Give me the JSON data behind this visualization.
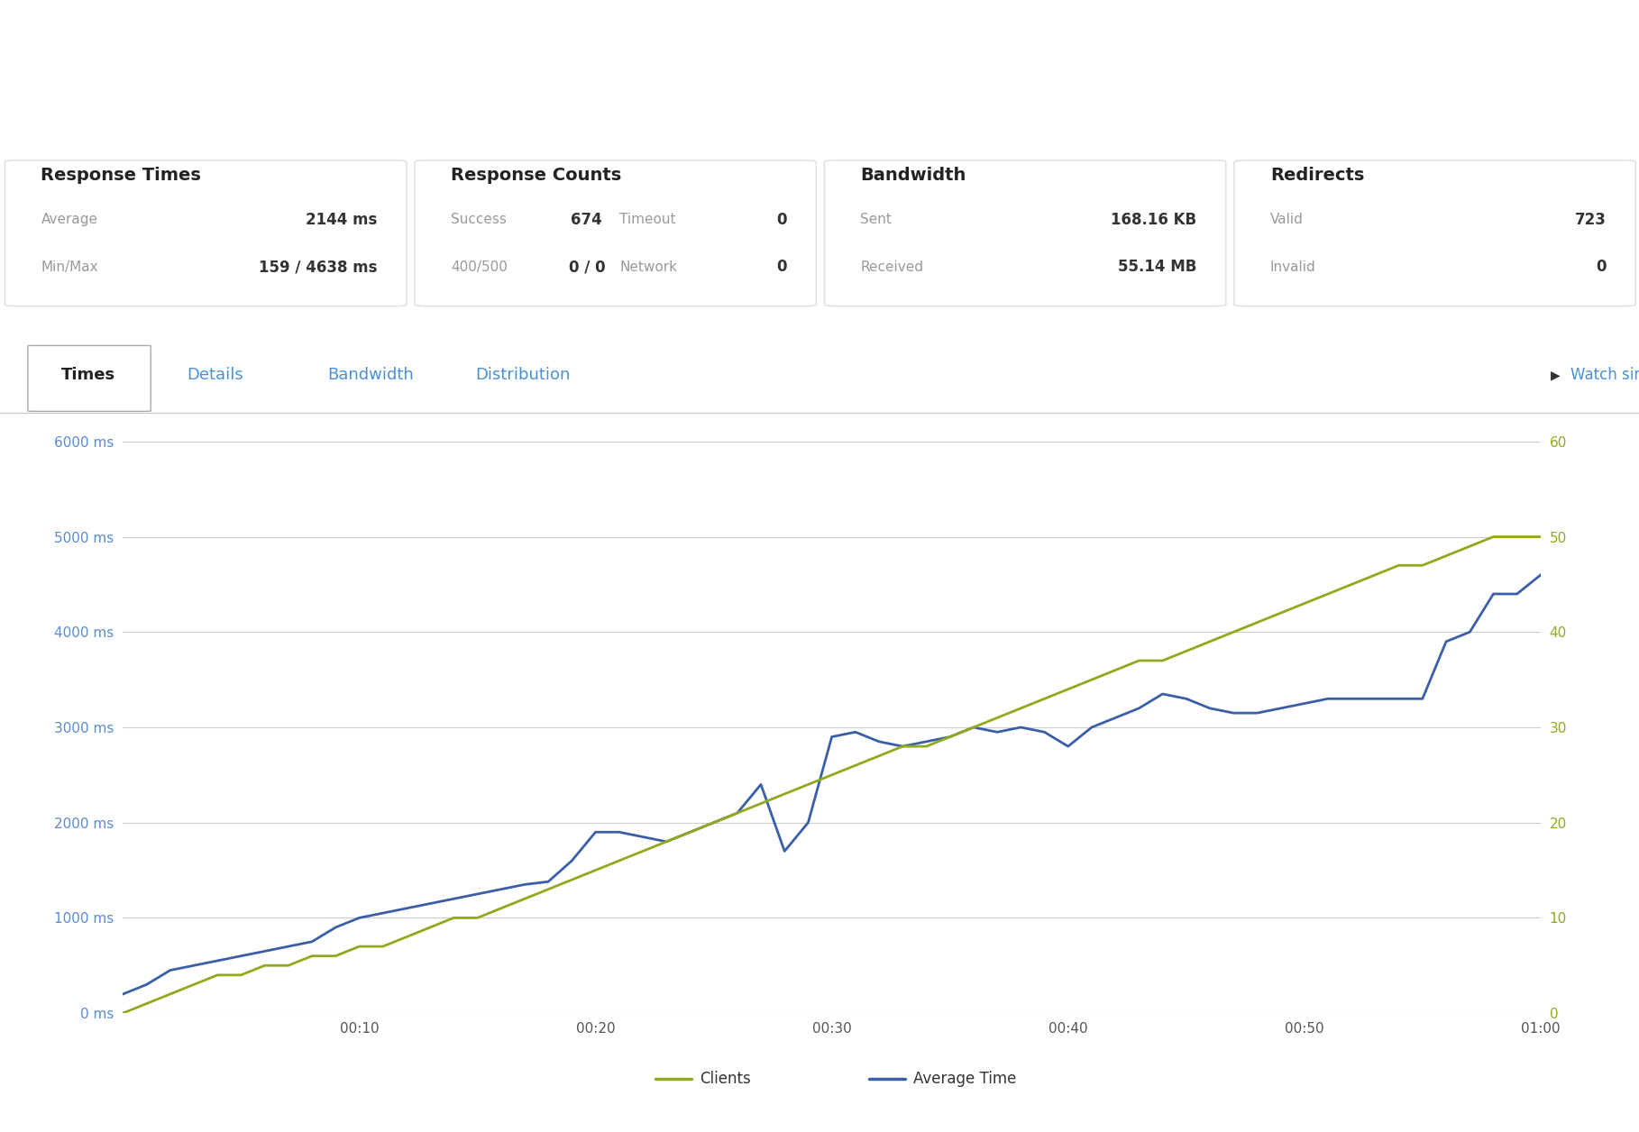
{
  "background_color": "#ffffff",
  "grid_color": "#cccccc",
  "left_tick_color": "#5b8bd0",
  "right_tick_color": "#8faa1b",
  "tab_active_color": "#222222",
  "tab_inactive_color": "#4a90d9",
  "label_color": "#999999",
  "value_color": "#333333",
  "card_border_color": "#dddddd",
  "cards": [
    {
      "title": "Response Times",
      "rows": [
        {
          "label": "Average",
          "value": "2144 ms"
        },
        {
          "label": "Min/Max",
          "value": "159 / 4638 ms"
        }
      ]
    },
    {
      "title": "Response Counts",
      "rows": [
        {
          "label": "Success",
          "value": "674",
          "label2": "Timeout",
          "value2": "0"
        },
        {
          "label": "400/500",
          "value": "0 / 0",
          "label2": "Network",
          "value2": "0"
        }
      ]
    },
    {
      "title": "Bandwidth",
      "rows": [
        {
          "label": "Sent",
          "value": "168.16 KB"
        },
        {
          "label": "Received",
          "value": "55.14 MB"
        }
      ]
    },
    {
      "title": "Redirects",
      "rows": [
        {
          "label": "Valid",
          "value": "723"
        },
        {
          "label": "Invalid",
          "value": "0"
        }
      ]
    }
  ],
  "tabs": [
    "Times",
    "Details",
    "Bandwidth",
    "Distribution"
  ],
  "active_tab": "Times",
  "watch_text": "Watch simulation",
  "chart": {
    "left_yticks": [
      0,
      1000,
      2000,
      3000,
      4000,
      5000,
      6000
    ],
    "left_yticklabels": [
      "0 ms",
      "1000 ms",
      "2000 ms",
      "3000 ms",
      "4000 ms",
      "5000 ms",
      "6000 ms"
    ],
    "right_yticks": [
      0,
      10,
      20,
      30,
      40,
      50,
      60
    ],
    "right_yticklabels": [
      "0",
      "10",
      "20",
      "30",
      "40",
      "50",
      "60"
    ],
    "xlim": [
      0,
      60
    ],
    "ylim_left": [
      0,
      6000
    ],
    "ylim_right": [
      0,
      60
    ],
    "xticks": [
      0,
      10,
      20,
      30,
      40,
      50,
      60
    ],
    "xticklabels": [
      "",
      "00:10",
      "00:20",
      "00:30",
      "00:40",
      "00:50",
      "01:00"
    ],
    "clients_x": [
      0,
      1,
      2,
      3,
      4,
      5,
      6,
      7,
      8,
      9,
      10,
      11,
      12,
      13,
      14,
      15,
      16,
      17,
      18,
      19,
      20,
      21,
      22,
      23,
      24,
      25,
      26,
      27,
      28,
      29,
      30,
      31,
      32,
      33,
      34,
      35,
      36,
      37,
      38,
      39,
      40,
      41,
      42,
      43,
      44,
      45,
      46,
      47,
      48,
      49,
      50,
      51,
      52,
      53,
      54,
      55,
      56,
      57,
      58,
      59,
      60
    ],
    "clients_y": [
      0,
      1,
      2,
      3,
      4,
      4,
      5,
      5,
      6,
      6,
      7,
      7,
      8,
      9,
      10,
      10,
      11,
      12,
      13,
      14,
      15,
      16,
      17,
      18,
      19,
      20,
      21,
      22,
      23,
      24,
      25,
      26,
      27,
      28,
      28,
      29,
      30,
      31,
      32,
      33,
      34,
      35,
      36,
      37,
      37,
      38,
      39,
      40,
      41,
      42,
      43,
      44,
      45,
      46,
      47,
      47,
      48,
      49,
      50,
      50,
      50
    ],
    "avg_x": [
      0,
      1,
      2,
      3,
      4,
      5,
      6,
      7,
      8,
      9,
      10,
      11,
      12,
      13,
      14,
      15,
      16,
      17,
      18,
      19,
      20,
      21,
      22,
      23,
      24,
      25,
      26,
      27,
      28,
      29,
      30,
      31,
      32,
      33,
      34,
      35,
      36,
      37,
      38,
      39,
      40,
      41,
      42,
      43,
      44,
      45,
      46,
      47,
      48,
      49,
      50,
      51,
      52,
      53,
      54,
      55,
      56,
      57,
      58,
      59,
      60
    ],
    "avg_y": [
      200,
      300,
      450,
      500,
      550,
      600,
      650,
      700,
      750,
      900,
      1000,
      1050,
      1100,
      1150,
      1200,
      1250,
      1300,
      1350,
      1380,
      1600,
      1900,
      1900,
      1850,
      1800,
      1900,
      2000,
      2100,
      2400,
      1700,
      2000,
      2900,
      2950,
      2850,
      2800,
      2850,
      2900,
      3000,
      2950,
      3000,
      2950,
      2800,
      3000,
      3100,
      3200,
      3350,
      3300,
      3200,
      3150,
      3150,
      3200,
      3250,
      3300,
      3300,
      3300,
      3300,
      3300,
      3900,
      4000,
      4400,
      4400,
      4600
    ]
  },
  "legend": [
    {
      "label": "Clients",
      "color": "#8faa1b"
    },
    {
      "label": "Average Time",
      "color": "#3a5fa8"
    }
  ]
}
